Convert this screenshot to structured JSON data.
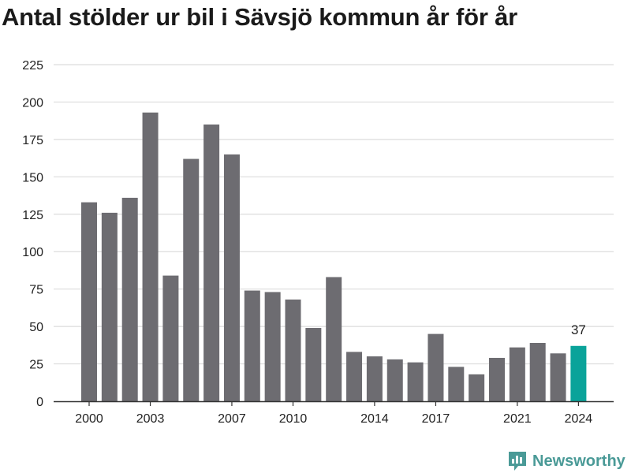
{
  "title": "Antal stölder ur bil i Sävsjö kommun år för år",
  "brand": {
    "name": "Newsworthy",
    "icon": "newsworthy-logo-icon",
    "color": "#4a9a97"
  },
  "colors": {
    "bar": "#6d6c71",
    "highlight": "#0aa39a",
    "grid": "#dcdcdc",
    "axis": "#333333",
    "text": "#222222"
  },
  "chart_data": {
    "type": "bar",
    "title": "Antal stölder ur bil i Sävsjö kommun år för år",
    "xlabel": "",
    "ylabel": "",
    "categories": [
      2000,
      2001,
      2002,
      2003,
      2004,
      2005,
      2006,
      2007,
      2008,
      2009,
      2010,
      2011,
      2012,
      2013,
      2014,
      2015,
      2016,
      2017,
      2018,
      2019,
      2020,
      2021,
      2022,
      2023,
      2024
    ],
    "values": [
      133,
      126,
      136,
      193,
      84,
      162,
      185,
      165,
      74,
      73,
      68,
      49,
      83,
      33,
      30,
      28,
      26,
      45,
      23,
      18,
      29,
      36,
      39,
      32,
      37
    ],
    "ylim": [
      0,
      225
    ],
    "yticks": [
      0,
      25,
      50,
      75,
      100,
      125,
      150,
      175,
      200,
      225
    ],
    "xticks": [
      "2000",
      "2003",
      "2007",
      "2010",
      "2014",
      "2017",
      "2021",
      "2024"
    ],
    "highlight": {
      "category": 2024,
      "label": "37"
    },
    "grid": true,
    "legend": "none"
  }
}
